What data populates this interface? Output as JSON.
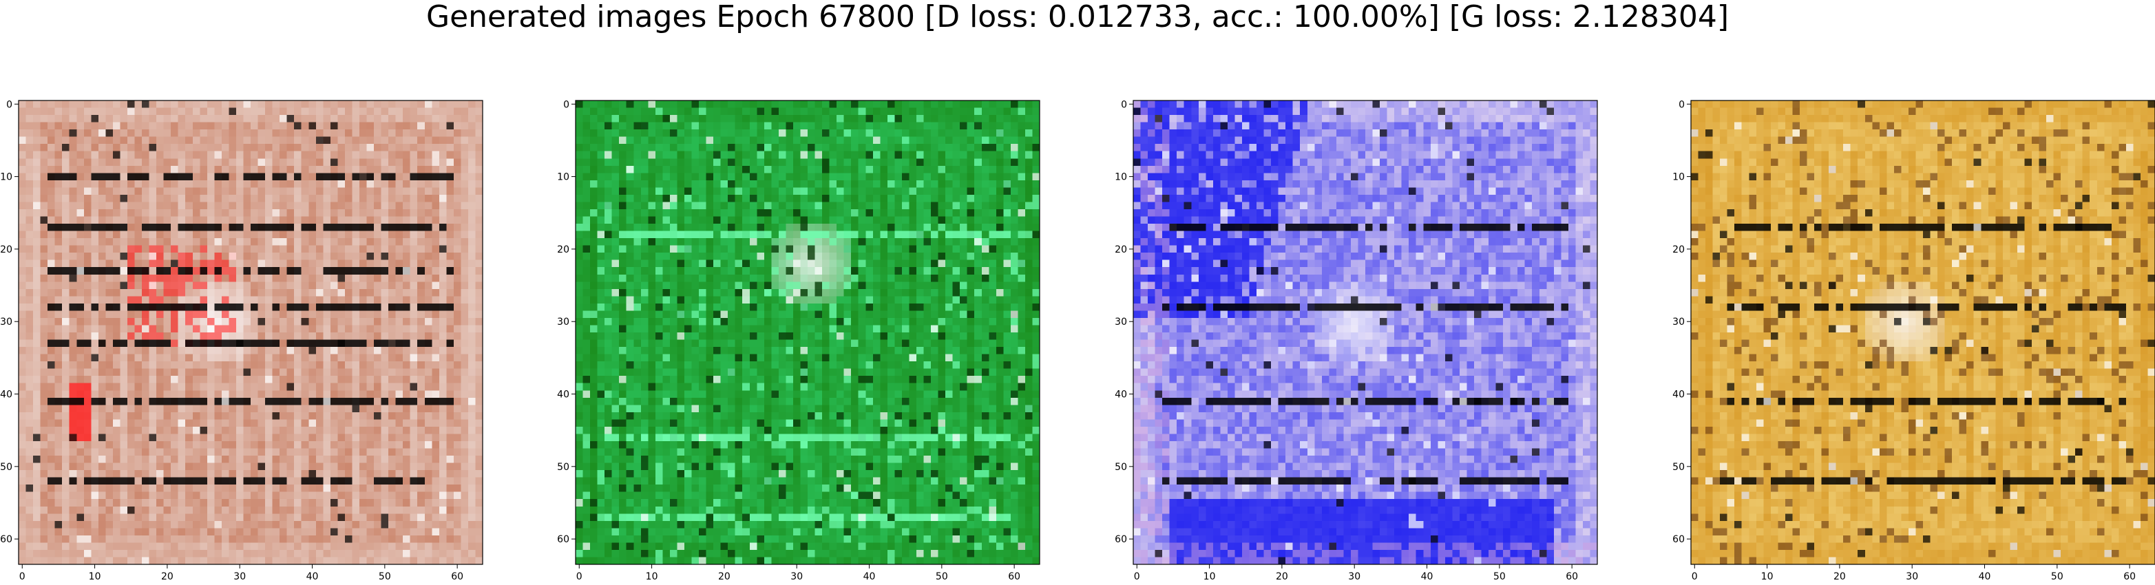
{
  "figure": {
    "title": "Generated images Epoch 67800 [D loss: 0.012733, acc.: 100.00%] [G loss: 2.128304]"
  },
  "chart_data": [
    {
      "type": "heatmap",
      "title": "",
      "xlabel": "",
      "ylabel": "",
      "xlim": [
        -0.5,
        63.5
      ],
      "ylim": [
        63.5,
        -0.5
      ],
      "x_ticks": [
        0,
        10,
        20,
        30,
        40,
        50,
        60
      ],
      "y_ticks": [
        0,
        10,
        20,
        30,
        40,
        50,
        60
      ],
      "grid": false,
      "dominant_colors": [
        "#e8cfc6",
        "#c06a4a",
        "#ff2a2a",
        "#000000"
      ],
      "visible_features": {
        "dark_horizontal_lines_at_y": [
          10,
          17,
          23,
          28,
          33,
          41,
          52
        ],
        "bright_patch_center": [
          27,
          30
        ],
        "vertical_stripes": true
      }
    },
    {
      "type": "heatmap",
      "title": "",
      "xlabel": "",
      "ylabel": "",
      "xlim": [
        -0.5,
        63.5
      ],
      "ylim": [
        63.5,
        -0.5
      ],
      "x_ticks": [
        0,
        10,
        20,
        30,
        40,
        50,
        60
      ],
      "y_ticks": [
        0,
        10,
        20,
        30,
        40,
        50,
        60
      ],
      "grid": false,
      "dominant_colors": [
        "#1a8a1a",
        "#2fd06a",
        "#083d08",
        "#70ffb0"
      ],
      "visible_features": {
        "dark_horizontal_lines_at_y": [
          18,
          46,
          57
        ],
        "bright_patch_center": [
          32,
          22
        ],
        "vertical_stripes": true
      }
    },
    {
      "type": "heatmap",
      "title": "",
      "xlabel": "",
      "ylabel": "",
      "xlim": [
        -0.5,
        63.5
      ],
      "ylim": [
        63.5,
        -0.5
      ],
      "x_ticks": [
        0,
        10,
        20,
        30,
        40,
        50,
        60
      ],
      "y_ticks": [
        0,
        10,
        20,
        30,
        40,
        50,
        60
      ],
      "grid": false,
      "dominant_colors": [
        "#f4e6f0",
        "#2a2af0",
        "#cfa0e0",
        "#000000"
      ],
      "visible_features": {
        "dark_horizontal_lines_at_y": [
          17,
          28,
          41,
          52
        ],
        "bright_patch_center": [
          30,
          30
        ],
        "blue_regions": [
          "top-left",
          "bottom"
        ]
      }
    },
    {
      "type": "heatmap",
      "title": "",
      "xlabel": "",
      "ylabel": "",
      "xlim": [
        -0.5,
        63.5
      ],
      "ylim": [
        63.5,
        -0.5
      ],
      "x_ticks": [
        0,
        10,
        20,
        30,
        40,
        50,
        60
      ],
      "y_ticks": [
        0,
        10,
        20,
        30,
        40,
        50,
        60
      ],
      "grid": false,
      "dominant_colors": [
        "#d89a28",
        "#f4d680",
        "#6a3a12",
        "#000000"
      ],
      "visible_features": {
        "dark_horizontal_lines_at_y": [
          17,
          28,
          41,
          52
        ],
        "bright_patch_center": [
          29,
          30
        ],
        "vertical_stripes": true
      }
    }
  ]
}
